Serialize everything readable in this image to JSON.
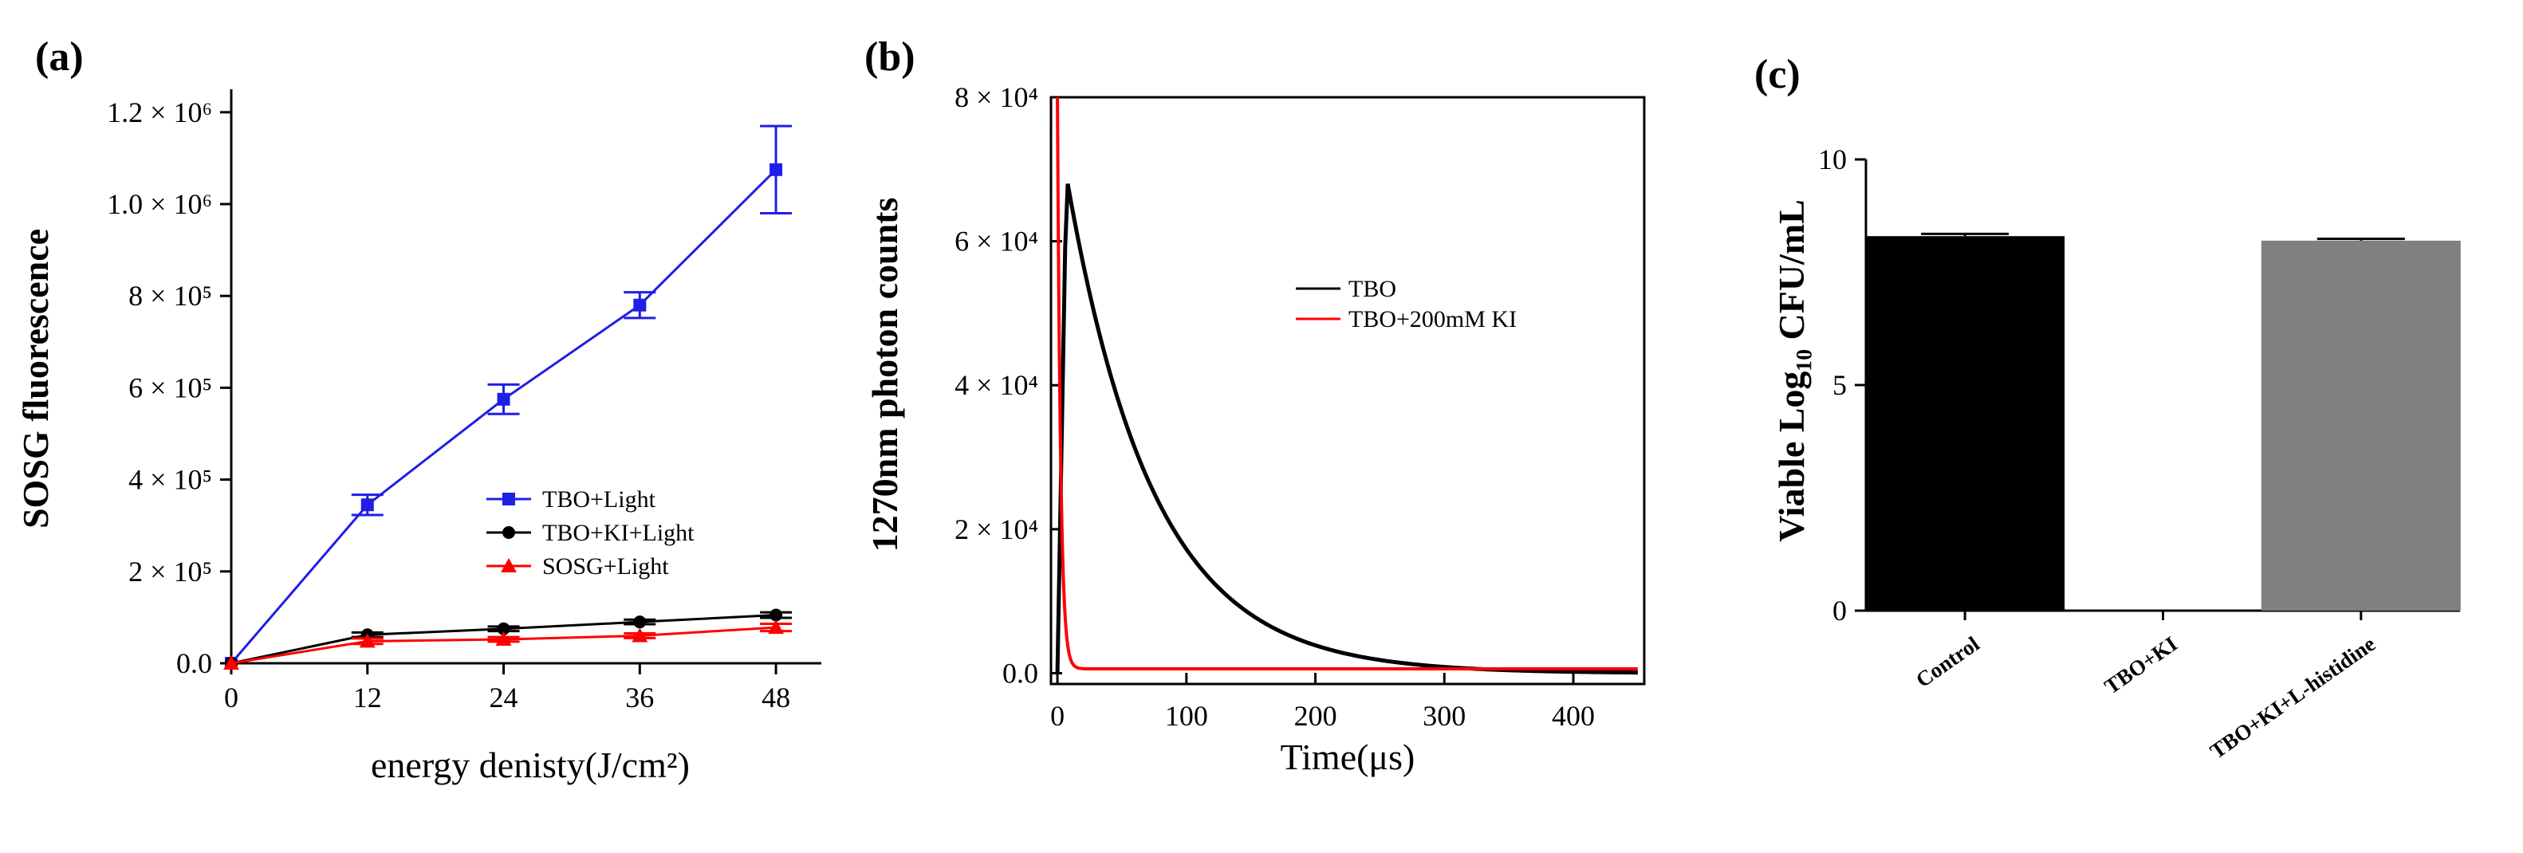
{
  "chart_data": [
    {
      "panel": "(a)",
      "type": "line",
      "xlabel": "energy denisty(J/cm²)",
      "ylabel": "SOSG fluorescence",
      "xlim": [
        0,
        52
      ],
      "ylim": [
        0,
        1250000
      ],
      "x_ticks": [
        0,
        12,
        24,
        36,
        48
      ],
      "y_ticks": [
        {
          "value": 0,
          "label": "0.0"
        },
        {
          "value": 200000,
          "label": "2 × 10⁵"
        },
        {
          "value": 400000,
          "label": "4 × 10⁵"
        },
        {
          "value": 600000,
          "label": "6 × 10⁵"
        },
        {
          "value": 800000,
          "label": "8 × 10⁵"
        },
        {
          "value": 1000000,
          "label": "1.0 × 10⁶"
        },
        {
          "value": 1200000,
          "label": "1.2 × 10⁶"
        }
      ],
      "x": [
        0,
        12,
        24,
        36,
        48
      ],
      "series": [
        {
          "name": "TBO+Light",
          "color": "#1f1fe6",
          "marker": "square",
          "values": [
            0,
            345000,
            575000,
            780000,
            1075000
          ],
          "errors": [
            0,
            22000,
            32000,
            28000,
            95000
          ]
        },
        {
          "name": "TBO+KI+Light",
          "color": "#000000",
          "marker": "circle",
          "values": [
            0,
            62000,
            75000,
            90000,
            105000
          ],
          "errors": [
            0,
            5000,
            5000,
            5000,
            6000
          ]
        },
        {
          "name": "SOSG+Light",
          "color": "#ff0000",
          "marker": "triangle",
          "values": [
            0,
            48000,
            52000,
            60000,
            78000
          ],
          "errors": [
            0,
            6000,
            5000,
            5000,
            8000
          ]
        }
      ],
      "legend_position": "center-right"
    },
    {
      "panel": "(b)",
      "type": "line",
      "xlabel": "Time(μs)",
      "ylabel": "1270nm photon counts",
      "xlim": [
        -5,
        455
      ],
      "ylim": [
        -1500,
        80000
      ],
      "x_ticks": [
        0,
        100,
        200,
        300,
        400
      ],
      "y_ticks": [
        {
          "value": 0,
          "label": "0.0"
        },
        {
          "value": 20000,
          "label": "2 × 10⁴"
        },
        {
          "value": 40000,
          "label": "4 × 10⁴"
        },
        {
          "value": 60000,
          "label": "6 × 10⁴"
        },
        {
          "value": 80000,
          "label": "8 × 10⁴"
        }
      ],
      "series": [
        {
          "name": "TBO",
          "color": "#000000",
          "peak": 69000,
          "peak_time": 7,
          "decay_tau": 67
        },
        {
          "name": "TBO+200mM KI",
          "color": "#ff0000",
          "peak": 80000,
          "peak_time": 0,
          "decay_tau": 2.5,
          "baseline": 600
        }
      ],
      "legend_position": "center-right"
    },
    {
      "panel": "(c)",
      "type": "bar",
      "ylabel": "Viable Log₁₀ CFU/mL",
      "ylim": [
        0,
        10
      ],
      "y_ticks": [
        0,
        5,
        10
      ],
      "categories": [
        "Control",
        "TBO+KI",
        "TBO+KI+L-histidine"
      ],
      "values": [
        8.3,
        0,
        8.2
      ],
      "errors": [
        0.05,
        0,
        0.04
      ],
      "colors": [
        "#000000",
        "#000000",
        "#808080"
      ]
    }
  ]
}
